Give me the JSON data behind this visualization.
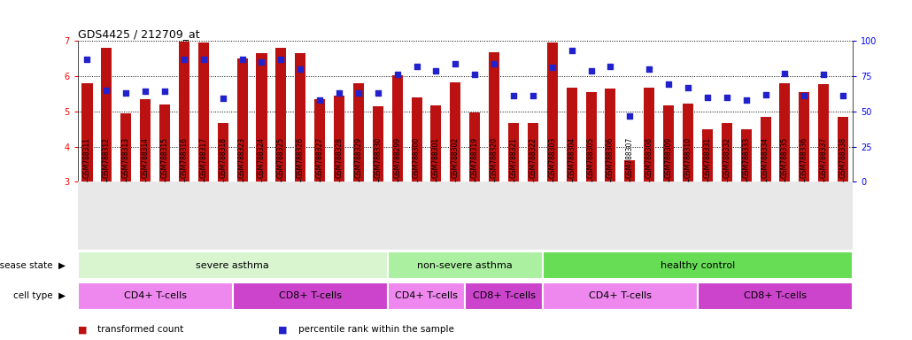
{
  "title": "GDS4425 / 212709_at",
  "samples": [
    "GSM788311",
    "GSM788312",
    "GSM788313",
    "GSM788314",
    "GSM788315",
    "GSM788316",
    "GSM788317",
    "GSM788318",
    "GSM788323",
    "GSM788324",
    "GSM788325",
    "GSM788326",
    "GSM788327",
    "GSM788328",
    "GSM788329",
    "GSM788330",
    "GSM788299",
    "GSM788300",
    "GSM788301",
    "GSM788302",
    "GSM788319",
    "GSM788320",
    "GSM788321",
    "GSM788322",
    "GSM788303",
    "GSM788304",
    "GSM788305",
    "GSM788306",
    "GSM788307",
    "GSM788308",
    "GSM788309",
    "GSM788310",
    "GSM788331",
    "GSM788332",
    "GSM788333",
    "GSM788334",
    "GSM788335",
    "GSM788336",
    "GSM788337",
    "GSM788338"
  ],
  "bar_values": [
    5.8,
    6.8,
    4.95,
    5.35,
    5.2,
    6.98,
    6.95,
    4.68,
    6.5,
    6.65,
    6.8,
    6.65,
    5.35,
    5.45,
    5.8,
    5.15,
    6.02,
    5.4,
    5.18,
    5.82,
    4.97,
    6.68,
    4.68,
    4.68,
    6.95,
    5.68,
    5.55,
    5.65,
    3.62,
    5.68,
    5.18,
    5.22,
    4.48,
    4.68,
    4.5,
    4.85,
    5.8,
    5.55,
    5.78,
    4.85
  ],
  "percentile_values": [
    87,
    65,
    63,
    64,
    64,
    87,
    87,
    59,
    87,
    85,
    87,
    80,
    58,
    63,
    63,
    63,
    76,
    82,
    79,
    84,
    76,
    84,
    61,
    61,
    81,
    93,
    79,
    82,
    47,
    80,
    69,
    67,
    60,
    60,
    58,
    62,
    77,
    61,
    76,
    61
  ],
  "ylim_left": [
    3,
    7
  ],
  "ylim_right": [
    0,
    100
  ],
  "yticks_left": [
    3,
    4,
    5,
    6,
    7
  ],
  "yticks_right": [
    0,
    25,
    50,
    75,
    100
  ],
  "bar_color": "#bb1111",
  "dot_color": "#2222cc",
  "background_color": "#ffffff",
  "disease_groups": [
    {
      "label": "severe asthma",
      "start": 0,
      "end": 15,
      "color": "#d8f5d0"
    },
    {
      "label": "non-severe asthma",
      "start": 16,
      "end": 23,
      "color": "#aaf0a0"
    },
    {
      "label": "healthy control",
      "start": 24,
      "end": 39,
      "color": "#66dd55"
    }
  ],
  "cell_groups": [
    {
      "label": "CD4+ T-cells",
      "start": 0,
      "end": 7,
      "color": "#ee88ee"
    },
    {
      "label": "CD8+ T-cells",
      "start": 8,
      "end": 15,
      "color": "#cc44cc"
    },
    {
      "label": "CD4+ T-cells",
      "start": 16,
      "end": 19,
      "color": "#ee88ee"
    },
    {
      "label": "CD8+ T-cells",
      "start": 20,
      "end": 23,
      "color": "#cc44cc"
    },
    {
      "label": "CD4+ T-cells",
      "start": 24,
      "end": 31,
      "color": "#ee88ee"
    },
    {
      "label": "CD8+ T-cells",
      "start": 32,
      "end": 39,
      "color": "#cc44cc"
    }
  ],
  "legend_items": [
    {
      "label": "transformed count",
      "color": "#bb1111"
    },
    {
      "label": "percentile rank within the sample",
      "color": "#2222cc"
    }
  ]
}
